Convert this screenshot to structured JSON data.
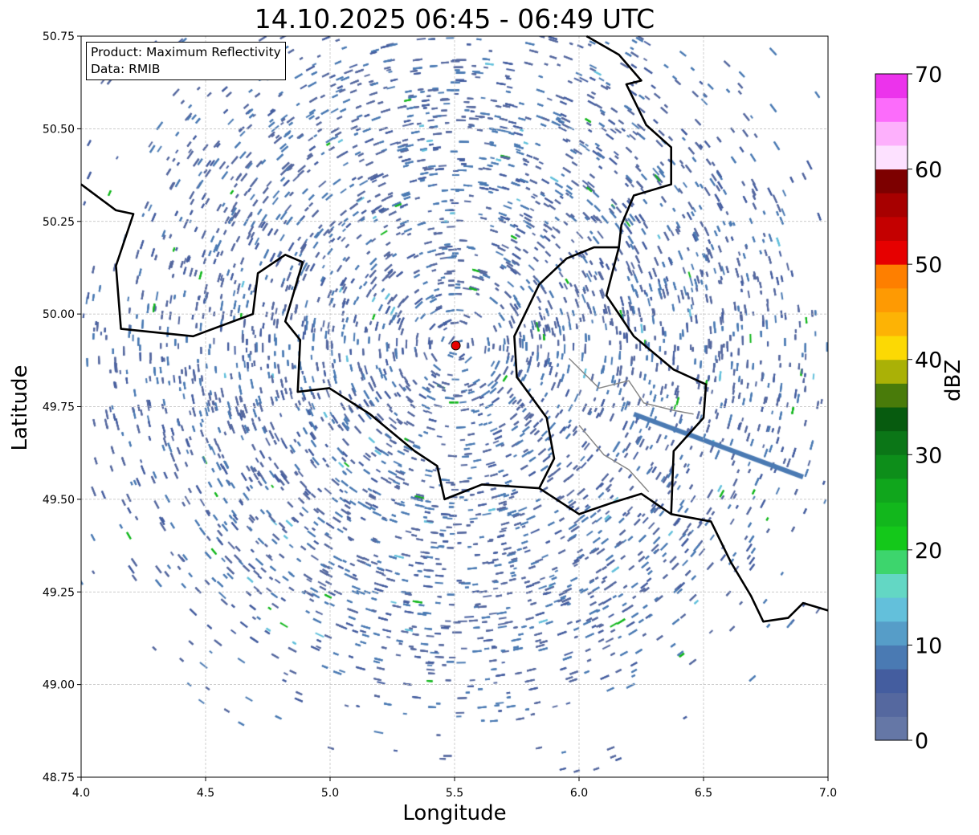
{
  "chart_data": {
    "type": "heatmap",
    "title": "14.10.2025 06:45 - 06:49 UTC",
    "xlabel": "Longitude",
    "ylabel": "Latitude",
    "xlim": [
      4.0,
      7.0
    ],
    "ylim": [
      48.75,
      50.75
    ],
    "xticks": [
      "4.0",
      "4.5",
      "5.0",
      "5.5",
      "6.0",
      "6.5",
      "7.0"
    ],
    "yticks": [
      "48.75",
      "49.00",
      "49.25",
      "49.50",
      "49.75",
      "50.00",
      "50.25",
      "50.50",
      "50.75"
    ],
    "grid": true,
    "legend": {
      "position": "top-left",
      "lines": [
        "Product: Maximum Reflectivity",
        "Data: RMIB"
      ]
    },
    "radar_site": {
      "lon": 5.505,
      "lat": 49.915,
      "color": "#e60000"
    },
    "colorbar": {
      "label": "dBZ",
      "range": [
        0,
        70
      ],
      "step": 2.5,
      "ticks": [
        "0",
        "10",
        "20",
        "30",
        "40",
        "50",
        "60",
        "70"
      ],
      "colors": [
        "#6577a6",
        "#55689f",
        "#445d9f",
        "#4a7ab3",
        "#569dc8",
        "#63c0db",
        "#63d7c4",
        "#3dd56d",
        "#14c81a",
        "#12b71c",
        "#10a61c",
        "#0d8e1a",
        "#0b7617",
        "#075b0f",
        "#497b0a",
        "#aab106",
        "#fcd904",
        "#fdb305",
        "#fe9a03",
        "#fe7f00",
        "#e60000",
        "#c40000",
        "#a70000",
        "#7d0000",
        "#fde1ff",
        "#fdb0fc",
        "#fc6cfb",
        "#ec33ec"
      ]
    },
    "borders": [
      [
        [
          4.0,
          50.35
        ],
        [
          4.14,
          50.28
        ],
        [
          4.21,
          50.27
        ],
        [
          4.14,
          50.13
        ],
        [
          4.16,
          49.96
        ],
        [
          4.45,
          49.94
        ],
        [
          4.69,
          50.0
        ],
        [
          4.71,
          50.11
        ],
        [
          4.82,
          50.16
        ],
        [
          4.89,
          50.14
        ],
        [
          4.82,
          49.98
        ],
        [
          4.88,
          49.93
        ],
        [
          4.87,
          49.79
        ],
        [
          4.997,
          49.8
        ],
        [
          5.16,
          49.73
        ],
        [
          5.34,
          49.63
        ],
        [
          5.43,
          49.59
        ],
        [
          5.46,
          49.5
        ],
        [
          5.61,
          49.54
        ],
        [
          5.84,
          49.53
        ],
        [
          5.9,
          49.61
        ],
        [
          5.87,
          49.72
        ],
        [
          5.75,
          49.83
        ],
        [
          5.74,
          49.94
        ],
        [
          5.84,
          50.08
        ],
        [
          5.95,
          50.15
        ],
        [
          6.06,
          50.18
        ],
        [
          6.16,
          50.18
        ],
        [
          6.17,
          50.24
        ],
        [
          6.22,
          50.32
        ],
        [
          6.37,
          50.35
        ],
        [
          6.37,
          50.45
        ],
        [
          6.27,
          50.51
        ],
        [
          6.19,
          50.62
        ],
        [
          6.25,
          50.63
        ],
        [
          6.16,
          50.7
        ],
        [
          6.03,
          50.75
        ]
      ],
      [
        [
          6.16,
          50.18
        ],
        [
          6.11,
          50.05
        ],
        [
          6.22,
          49.94
        ],
        [
          6.38,
          49.85
        ],
        [
          6.51,
          49.81
        ],
        [
          6.5,
          49.72
        ],
        [
          6.38,
          49.63
        ],
        [
          6.37,
          49.46
        ]
      ],
      [
        [
          5.84,
          49.53
        ],
        [
          6.0,
          49.46
        ],
        [
          6.13,
          49.49
        ],
        [
          6.25,
          49.515
        ],
        [
          6.37,
          49.46
        ],
        [
          6.53,
          49.44
        ],
        [
          6.61,
          49.33
        ],
        [
          6.69,
          49.24
        ],
        [
          6.74,
          49.17
        ],
        [
          6.84,
          49.18
        ],
        [
          6.9,
          49.22
        ],
        [
          7.0,
          49.2
        ]
      ]
    ],
    "minor_borders": [
      [
        [
          5.96,
          49.88
        ],
        [
          6.08,
          49.8
        ],
        [
          6.2,
          49.82
        ],
        [
          6.26,
          49.76
        ],
        [
          6.38,
          49.74
        ],
        [
          6.46,
          49.73
        ]
      ],
      [
        [
          6.0,
          49.7
        ],
        [
          6.1,
          49.62
        ],
        [
          6.2,
          49.58
        ],
        [
          6.28,
          49.52
        ]
      ]
    ]
  }
}
